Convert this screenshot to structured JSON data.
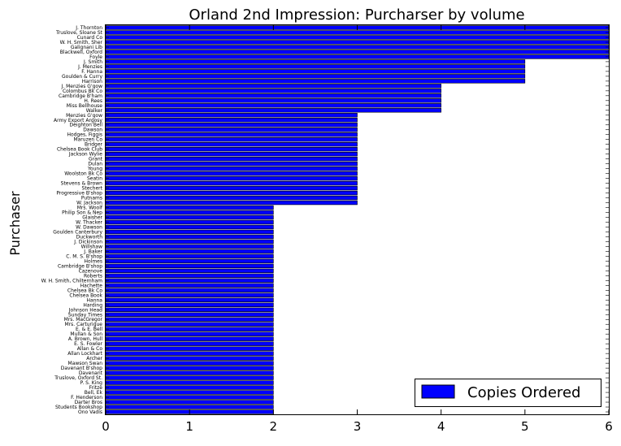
{
  "chart_data": {
    "type": "bar",
    "orientation": "horizontal",
    "title": "Orland 2nd Impression: Purcharser by volume",
    "xlabel": "",
    "ylabel": "Purchaser",
    "xlim": [
      0,
      6
    ],
    "xticks": [
      "0",
      "1",
      "2",
      "3",
      "4",
      "5",
      "6"
    ],
    "grid": false,
    "legend_position": "lower-right",
    "bar_color": "#0000ff",
    "series": [
      {
        "name": "Copies Ordered"
      }
    ],
    "categories": [
      "J. Thornton",
      "Truslove, Sloane St",
      "Cunard Co",
      "W. H. Smith, Sher",
      "Galignani Lib",
      "Blackwell, Oxford",
      "Foyle",
      "J. Smith",
      "J. Menzies",
      "F. Hanna",
      "Goulden & Curry",
      "Harrison",
      "J. Menzies G'gow",
      "Colombus Bk Co",
      "Cambridge B'ham",
      "H. Rees",
      "Miss Bellhouse",
      "Walker",
      "Menzies G'gow",
      "Army Export Argosy",
      "Deighton Bell",
      "Dawson",
      "Hodges, Figgis",
      "Maruzen Co",
      "Bridger",
      "Chelsea Book Club",
      "Jackson Wylie",
      "Grant",
      "Dulan",
      "Young",
      "Woolston Bk Co",
      "Seatin",
      "Stevens & Brown",
      "Stechert",
      "Progressive B'shop",
      "Putnams",
      "W. Jackson",
      "Mrs. Woolf",
      "Philip Son & Nep",
      "Glaisher",
      "W. Thacker",
      "W. Dawson",
      "Goulden Canterbury",
      "Duckworth",
      "J. Dickinson",
      "Willshaw",
      "J. Baker",
      "C. M. S. B'shop",
      "Holmes",
      "Cambridge B'shop",
      "Cazenove",
      "Roberts",
      "W. H. Smith, Chilternham",
      "Hachette",
      "Chelsea Bk Co",
      "Chelsea Book",
      "Hanna",
      "Harding",
      "Johnson Head",
      "Sunday Times",
      "Mrs. MacGregor",
      "Mrs. Carturigue",
      "E. & E. Bell",
      "Mullan & Son",
      "A. Brown, Hull",
      "E. S. Fowler",
      "Allan & Co",
      "Allan Lockhart",
      "Archer",
      "Mawson Swan",
      "Davenant B'shop",
      "Davenant",
      "Truslove, Oxford St.",
      "P. S. King",
      "Fritze",
      "Bell, Ek",
      "F. Henderson",
      "Darter Bros",
      "Students Bookshop",
      "Ono Vadis"
    ],
    "values": [
      6,
      6,
      6,
      6,
      6,
      6,
      6,
      5,
      5,
      5,
      5,
      5,
      4,
      4,
      4,
      4,
      4,
      4,
      3,
      3,
      3,
      3,
      3,
      3,
      3,
      3,
      3,
      3,
      3,
      3,
      3,
      3,
      3,
      3,
      3,
      3,
      3,
      2,
      2,
      2,
      2,
      2,
      2,
      2,
      2,
      2,
      2,
      2,
      2,
      2,
      2,
      2,
      2,
      2,
      2,
      2,
      2,
      2,
      2,
      2,
      2,
      2,
      2,
      2,
      2,
      2,
      2,
      2,
      2,
      2,
      2,
      2,
      2,
      2,
      2,
      2,
      2,
      2,
      2,
      2
    ]
  }
}
